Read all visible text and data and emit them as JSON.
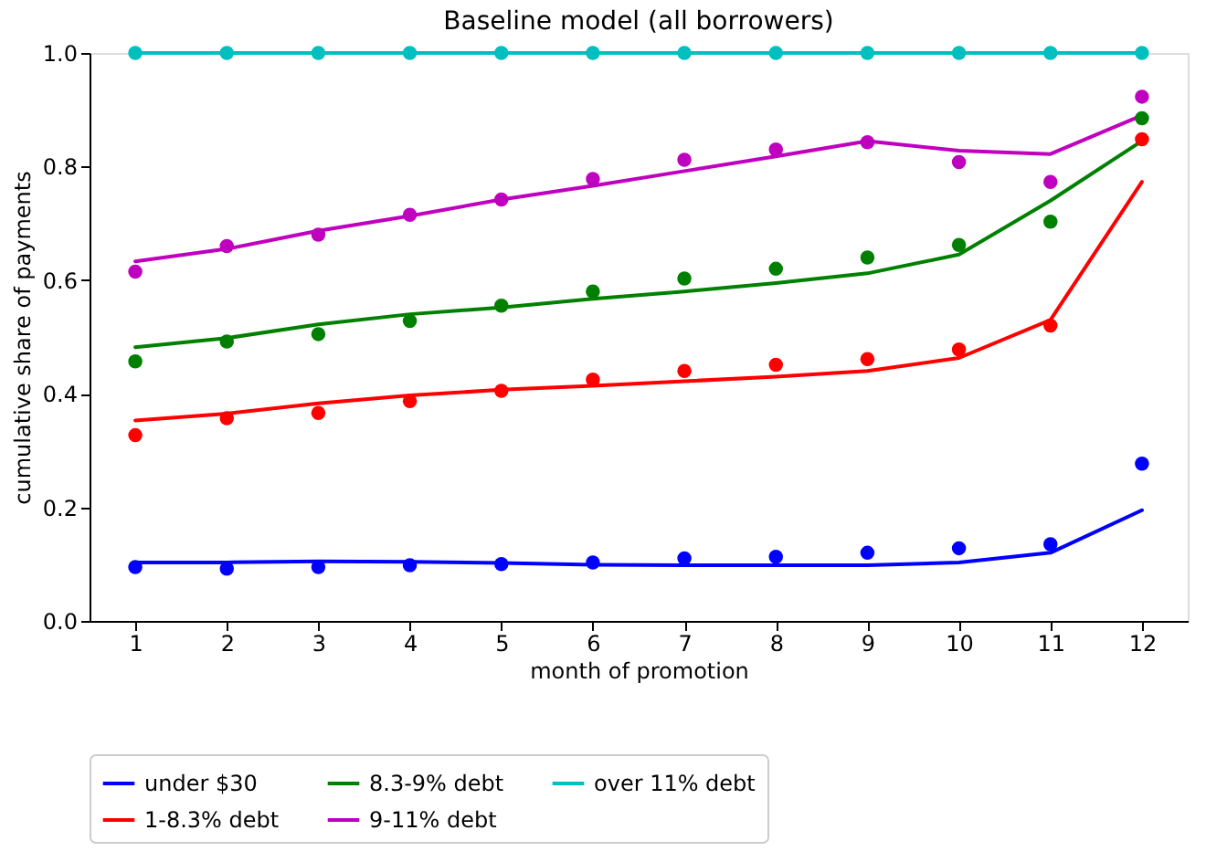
{
  "chart_data": {
    "type": "line",
    "title": "Baseline model (all borrowers)",
    "xlabel": "month of promotion",
    "ylabel": "cumulative share of payments",
    "x": [
      1,
      2,
      3,
      4,
      5,
      6,
      7,
      8,
      9,
      10,
      11,
      12
    ],
    "xlim": [
      0.5,
      12.5
    ],
    "xticks": [
      1,
      2,
      3,
      4,
      5,
      6,
      7,
      8,
      9,
      10,
      11,
      12
    ],
    "ylim": [
      0,
      1.0
    ],
    "yticks": [
      {
        "value": 0,
        "label": "0.0"
      },
      {
        "value": 0.2,
        "label": "0.2"
      },
      {
        "value": 0.4,
        "label": "0.4"
      },
      {
        "value": 0.6,
        "label": "0.6"
      },
      {
        "value": 0.8,
        "label": "0.8"
      },
      {
        "value": 1.0,
        "label": "1.0"
      }
    ],
    "grid": false,
    "legend": "bottom",
    "line_style": "solid",
    "series": [
      {
        "name": "under $30",
        "marker": "none",
        "color": "#0000ff",
        "values": [
          0.103,
          0.103,
          0.105,
          0.104,
          0.102,
          0.099,
          0.098,
          0.098,
          0.098,
          0.103,
          0.12,
          0.195
        ]
      },
      {
        "name": "1-8.3% debt",
        "marker": "none",
        "color": "#ff0000",
        "values": [
          0.353,
          0.365,
          0.383,
          0.397,
          0.407,
          0.414,
          0.422,
          0.43,
          0.44,
          0.463,
          0.53,
          0.773
        ]
      },
      {
        "name": "8.3-9% debt",
        "marker": "none",
        "color": "#008000",
        "values": [
          0.482,
          0.498,
          0.522,
          0.54,
          0.552,
          0.567,
          0.58,
          0.595,
          0.612,
          0.645,
          0.74,
          0.845
        ]
      },
      {
        "name": "9-11% debt",
        "marker": "none",
        "color": "#bf00bf",
        "values": [
          0.633,
          0.655,
          0.687,
          0.713,
          0.742,
          0.766,
          0.792,
          0.818,
          0.845,
          0.828,
          0.822,
          0.89
        ]
      },
      {
        "name": "over 11% debt",
        "marker": "none",
        "color": "#00bfbf",
        "values": [
          1.0,
          1.0,
          1.0,
          1.0,
          1.0,
          1.0,
          1.0,
          1.0,
          1.0,
          1.0,
          1.0,
          1.0
        ]
      },
      {
        "type": "scatter",
        "marker": "circle",
        "color": "#0000ff",
        "values": [
          0.095,
          0.092,
          0.095,
          0.098,
          0.1,
          0.103,
          0.11,
          0.113,
          0.12,
          0.128,
          0.135,
          0.277
        ]
      },
      {
        "type": "scatter",
        "marker": "circle",
        "color": "#ff0000",
        "values": [
          0.327,
          0.357,
          0.366,
          0.387,
          0.405,
          0.425,
          0.44,
          0.451,
          0.461,
          0.478,
          0.52,
          0.848
        ]
      },
      {
        "type": "scatter",
        "marker": "circle",
        "color": "#008000",
        "values": [
          0.457,
          0.492,
          0.505,
          0.528,
          0.555,
          0.58,
          0.603,
          0.62,
          0.64,
          0.662,
          0.703,
          0.885
        ]
      },
      {
        "type": "scatter",
        "marker": "circle",
        "color": "#bf00bf",
        "values": [
          0.615,
          0.66,
          0.68,
          0.715,
          0.742,
          0.778,
          0.812,
          0.83,
          0.843,
          0.808,
          0.773,
          0.923
        ]
      },
      {
        "type": "scatter",
        "marker": "circle",
        "color": "#00bfbf",
        "values": [
          1.0,
          1.0,
          1.0,
          1.0,
          1.0,
          1.0,
          1.0,
          1.0,
          1.0,
          1.0,
          1.0,
          1.0
        ]
      }
    ]
  }
}
